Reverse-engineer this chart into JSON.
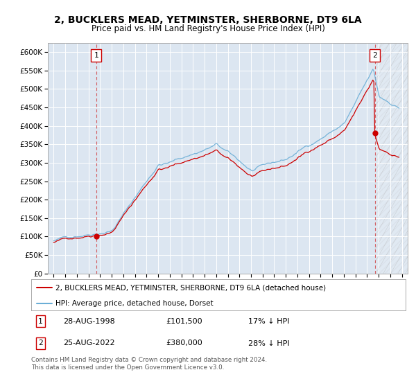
{
  "title": "2, BUCKLERS MEAD, YETMINSTER, SHERBORNE, DT9 6LA",
  "subtitle": "Price paid vs. HM Land Registry's House Price Index (HPI)",
  "legend_label_red": "2, BUCKLERS MEAD, YETMINSTER, SHERBORNE, DT9 6LA (detached house)",
  "legend_label_blue": "HPI: Average price, detached house, Dorset",
  "footnote": "Contains HM Land Registry data © Crown copyright and database right 2024.\nThis data is licensed under the Open Government Licence v3.0.",
  "sale1_date": "28-AUG-1998",
  "sale1_price": 101500,
  "sale1_pct": "17% ↓ HPI",
  "sale2_date": "25-AUG-2022",
  "sale2_price": 380000,
  "sale2_pct": "28% ↓ HPI",
  "sale1_x": 1998.667,
  "sale2_x": 2022.667,
  "ylim": [
    0,
    625000
  ],
  "yticks": [
    0,
    50000,
    100000,
    150000,
    200000,
    250000,
    300000,
    350000,
    400000,
    450000,
    500000,
    550000,
    600000
  ],
  "xlim_left": 1994.5,
  "xlim_right": 2025.5,
  "bg_color": "#dce6f1",
  "red_color": "#cc0000",
  "blue_color": "#6baed6",
  "grid_color": "#ffffff",
  "hatch_color": "#c0c0c0"
}
